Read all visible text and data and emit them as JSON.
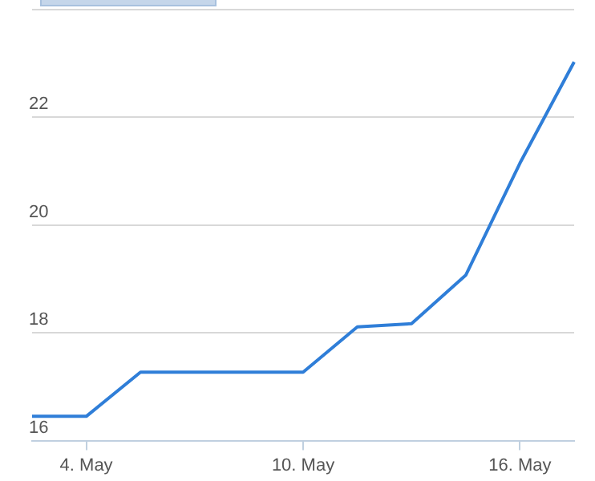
{
  "chart_data": {
    "type": "line",
    "categories": [
      null,
      "4. May",
      null,
      null,
      null,
      "10. May",
      null,
      null,
      null,
      "16. May",
      null
    ],
    "series": [
      {
        "color": "#2f7ed8",
        "values": [
          16.45,
          16.45,
          17.27,
          17.27,
          17.27,
          17.27,
          18.11,
          18.17,
          19.07,
          21.15,
          23.03
        ]
      }
    ],
    "ylim": [
      16,
      24
    ],
    "yticks": [
      16,
      18,
      20,
      22,
      {
        "value": 24,
        "label": null
      }
    ],
    "grid": "y",
    "legend": false,
    "marker": "none",
    "line_style": "solid"
  }
}
